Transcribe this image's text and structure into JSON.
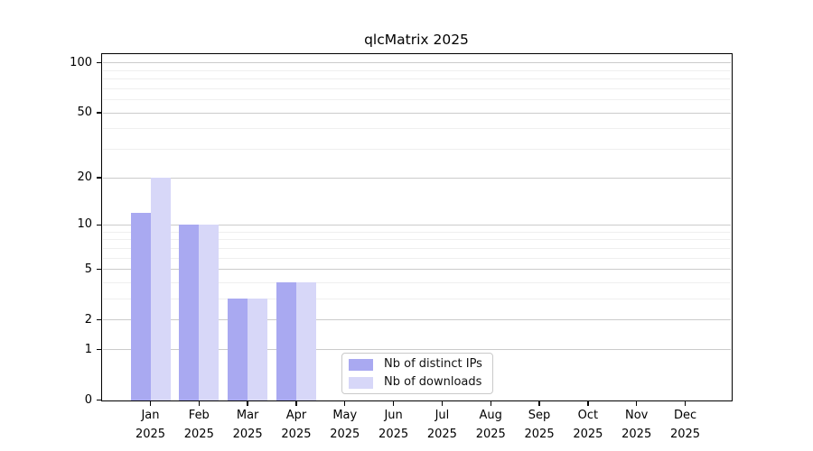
{
  "chart_data": {
    "type": "bar",
    "title": "qlcMatrix 2025",
    "year_label": "2025",
    "categories": [
      "Jan",
      "Feb",
      "Mar",
      "Apr",
      "May",
      "Jun",
      "Jul",
      "Aug",
      "Sep",
      "Oct",
      "Nov",
      "Dec"
    ],
    "series": [
      {
        "name": "Nb of distinct IPs",
        "color": "#a9a9f1",
        "values": [
          12,
          10,
          3,
          4,
          0,
          0,
          0,
          0,
          0,
          0,
          0,
          0
        ]
      },
      {
        "name": "Nb of downloads",
        "color": "#d7d7f8",
        "values": [
          20,
          10,
          3,
          4,
          0,
          0,
          0,
          0,
          0,
          0,
          0,
          0
        ]
      }
    ],
    "yscale": "log1p",
    "ylim": [
      0,
      115
    ],
    "yticks": [
      0,
      1,
      2,
      5,
      10,
      20,
      50,
      100
    ],
    "minor_gridlines": [
      3,
      4,
      6,
      7,
      8,
      9,
      30,
      40,
      60,
      70,
      80,
      90
    ],
    "grid": "horizontal",
    "legend_position": "lower center"
  }
}
